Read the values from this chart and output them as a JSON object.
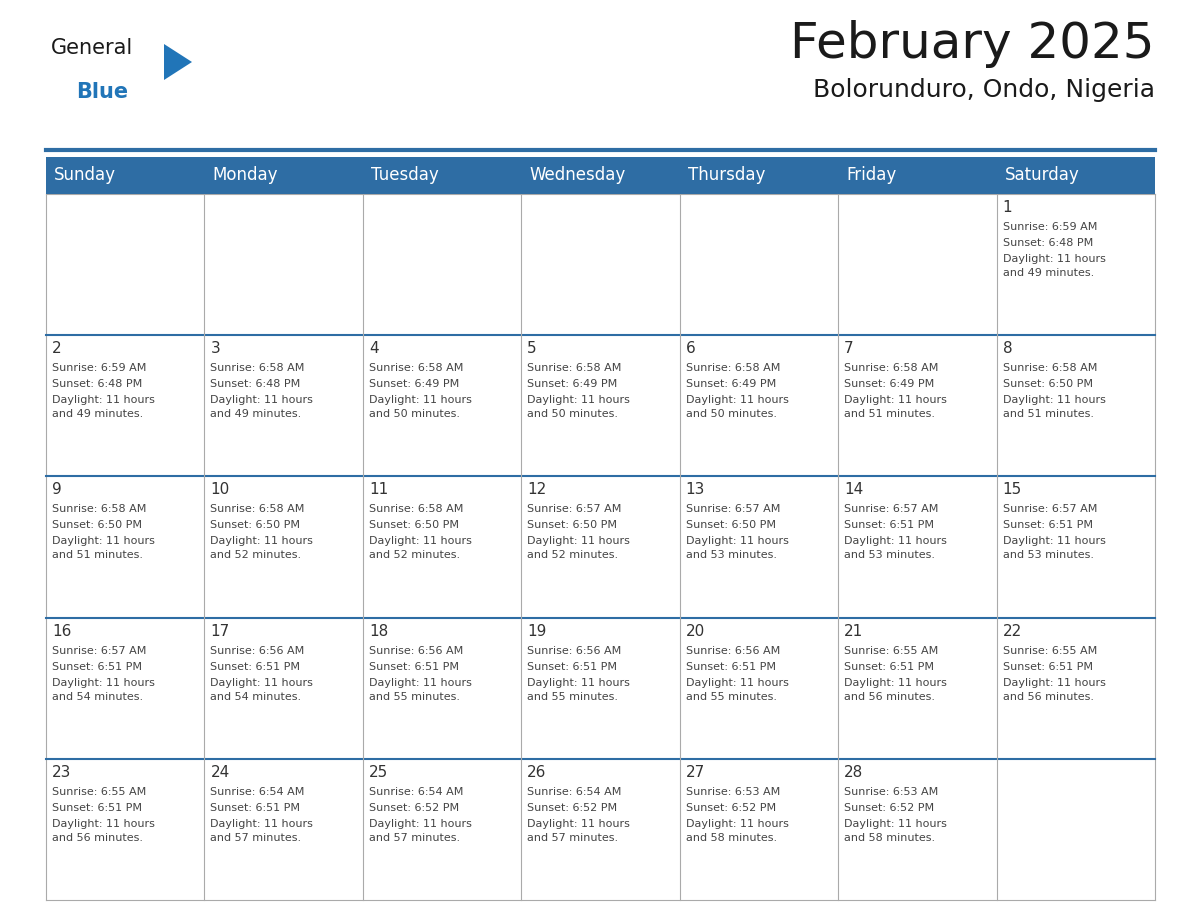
{
  "title": "February 2025",
  "subtitle": "Bolorunduro, Ondo, Nigeria",
  "header_bg": "#2E6DA4",
  "header_text": "#FFFFFF",
  "border_color": "#2E6DA4",
  "row_divider_color": "#2E6DA4",
  "col_divider_color": "#CCCCCC",
  "cell_bg": "#FFFFFF",
  "day_names": [
    "Sunday",
    "Monday",
    "Tuesday",
    "Wednesday",
    "Thursday",
    "Friday",
    "Saturday"
  ],
  "days": [
    {
      "day": 1,
      "col": 6,
      "row": 0,
      "sunrise": "6:59 AM",
      "sunset": "6:48 PM",
      "daylight": "11 hours\nand 49 minutes."
    },
    {
      "day": 2,
      "col": 0,
      "row": 1,
      "sunrise": "6:59 AM",
      "sunset": "6:48 PM",
      "daylight": "11 hours\nand 49 minutes."
    },
    {
      "day": 3,
      "col": 1,
      "row": 1,
      "sunrise": "6:58 AM",
      "sunset": "6:48 PM",
      "daylight": "11 hours\nand 49 minutes."
    },
    {
      "day": 4,
      "col": 2,
      "row": 1,
      "sunrise": "6:58 AM",
      "sunset": "6:49 PM",
      "daylight": "11 hours\nand 50 minutes."
    },
    {
      "day": 5,
      "col": 3,
      "row": 1,
      "sunrise": "6:58 AM",
      "sunset": "6:49 PM",
      "daylight": "11 hours\nand 50 minutes."
    },
    {
      "day": 6,
      "col": 4,
      "row": 1,
      "sunrise": "6:58 AM",
      "sunset": "6:49 PM",
      "daylight": "11 hours\nand 50 minutes."
    },
    {
      "day": 7,
      "col": 5,
      "row": 1,
      "sunrise": "6:58 AM",
      "sunset": "6:49 PM",
      "daylight": "11 hours\nand 51 minutes."
    },
    {
      "day": 8,
      "col": 6,
      "row": 1,
      "sunrise": "6:58 AM",
      "sunset": "6:50 PM",
      "daylight": "11 hours\nand 51 minutes."
    },
    {
      "day": 9,
      "col": 0,
      "row": 2,
      "sunrise": "6:58 AM",
      "sunset": "6:50 PM",
      "daylight": "11 hours\nand 51 minutes."
    },
    {
      "day": 10,
      "col": 1,
      "row": 2,
      "sunrise": "6:58 AM",
      "sunset": "6:50 PM",
      "daylight": "11 hours\nand 52 minutes."
    },
    {
      "day": 11,
      "col": 2,
      "row": 2,
      "sunrise": "6:58 AM",
      "sunset": "6:50 PM",
      "daylight": "11 hours\nand 52 minutes."
    },
    {
      "day": 12,
      "col": 3,
      "row": 2,
      "sunrise": "6:57 AM",
      "sunset": "6:50 PM",
      "daylight": "11 hours\nand 52 minutes."
    },
    {
      "day": 13,
      "col": 4,
      "row": 2,
      "sunrise": "6:57 AM",
      "sunset": "6:50 PM",
      "daylight": "11 hours\nand 53 minutes."
    },
    {
      "day": 14,
      "col": 5,
      "row": 2,
      "sunrise": "6:57 AM",
      "sunset": "6:51 PM",
      "daylight": "11 hours\nand 53 minutes."
    },
    {
      "day": 15,
      "col": 6,
      "row": 2,
      "sunrise": "6:57 AM",
      "sunset": "6:51 PM",
      "daylight": "11 hours\nand 53 minutes."
    },
    {
      "day": 16,
      "col": 0,
      "row": 3,
      "sunrise": "6:57 AM",
      "sunset": "6:51 PM",
      "daylight": "11 hours\nand 54 minutes."
    },
    {
      "day": 17,
      "col": 1,
      "row": 3,
      "sunrise": "6:56 AM",
      "sunset": "6:51 PM",
      "daylight": "11 hours\nand 54 minutes."
    },
    {
      "day": 18,
      "col": 2,
      "row": 3,
      "sunrise": "6:56 AM",
      "sunset": "6:51 PM",
      "daylight": "11 hours\nand 55 minutes."
    },
    {
      "day": 19,
      "col": 3,
      "row": 3,
      "sunrise": "6:56 AM",
      "sunset": "6:51 PM",
      "daylight": "11 hours\nand 55 minutes."
    },
    {
      "day": 20,
      "col": 4,
      "row": 3,
      "sunrise": "6:56 AM",
      "sunset": "6:51 PM",
      "daylight": "11 hours\nand 55 minutes."
    },
    {
      "day": 21,
      "col": 5,
      "row": 3,
      "sunrise": "6:55 AM",
      "sunset": "6:51 PM",
      "daylight": "11 hours\nand 56 minutes."
    },
    {
      "day": 22,
      "col": 6,
      "row": 3,
      "sunrise": "6:55 AM",
      "sunset": "6:51 PM",
      "daylight": "11 hours\nand 56 minutes."
    },
    {
      "day": 23,
      "col": 0,
      "row": 4,
      "sunrise": "6:55 AM",
      "sunset": "6:51 PM",
      "daylight": "11 hours\nand 56 minutes."
    },
    {
      "day": 24,
      "col": 1,
      "row": 4,
      "sunrise": "6:54 AM",
      "sunset": "6:51 PM",
      "daylight": "11 hours\nand 57 minutes."
    },
    {
      "day": 25,
      "col": 2,
      "row": 4,
      "sunrise": "6:54 AM",
      "sunset": "6:52 PM",
      "daylight": "11 hours\nand 57 minutes."
    },
    {
      "day": 26,
      "col": 3,
      "row": 4,
      "sunrise": "6:54 AM",
      "sunset": "6:52 PM",
      "daylight": "11 hours\nand 57 minutes."
    },
    {
      "day": 27,
      "col": 4,
      "row": 4,
      "sunrise": "6:53 AM",
      "sunset": "6:52 PM",
      "daylight": "11 hours\nand 58 minutes."
    },
    {
      "day": 28,
      "col": 5,
      "row": 4,
      "sunrise": "6:53 AM",
      "sunset": "6:52 PM",
      "daylight": "11 hours\nand 58 minutes."
    }
  ],
  "num_rows": 5,
  "num_cols": 7,
  "logo_color1": "#1a1a1a",
  "logo_color2": "#2175B8",
  "logo_triangle_color": "#2175B8",
  "title_fontsize": 36,
  "subtitle_fontsize": 18,
  "header_fontsize": 12,
  "day_num_fontsize": 11,
  "cell_text_fontsize": 8
}
